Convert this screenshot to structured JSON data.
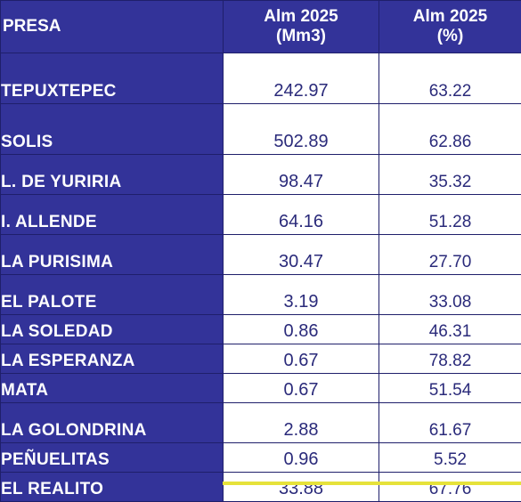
{
  "header": {
    "col_name": "PRESA",
    "col_mm3_line1": "Alm 2025",
    "col_mm3_line2": "(Mm3)",
    "col_pct_line1": "Alm 2025",
    "col_pct_line2": "(%)"
  },
  "rows": [
    {
      "name": "TEPUXTEPEC",
      "mm3": "242.97",
      "pct": "63.22"
    },
    {
      "name": "SOLIS",
      "mm3": "502.89",
      "pct": "62.86"
    },
    {
      "name": "L. DE YURIRIA",
      "mm3": "98.47",
      "pct": "35.32"
    },
    {
      "name": "I. ALLENDE",
      "mm3": "64.16",
      "pct": "51.28"
    },
    {
      "name": "LA PURISIMA",
      "mm3": "30.47",
      "pct": "27.70"
    },
    {
      "name": "EL PALOTE",
      "mm3": "3.19",
      "pct": "33.08"
    },
    {
      "name": "LA SOLEDAD",
      "mm3": "0.86",
      "pct": "46.31"
    },
    {
      "name": "LA ESPERANZA",
      "mm3": "0.67",
      "pct": "78.82"
    },
    {
      "name": "MATA",
      "mm3": "0.67",
      "pct": "51.54"
    },
    {
      "name": "LA GOLONDRINA",
      "mm3": "2.88",
      "pct": "61.67"
    },
    {
      "name": "PEÑUELITAS",
      "mm3": "0.96",
      "pct": "5.52"
    },
    {
      "name": "EL REALITO",
      "mm3": "33.88",
      "pct": "67.76"
    }
  ],
  "colors": {
    "header_bg": "#333399",
    "header_text": "#ffffff",
    "value_text": "#2a2a7a",
    "accent_rule": "#e6e23a"
  }
}
